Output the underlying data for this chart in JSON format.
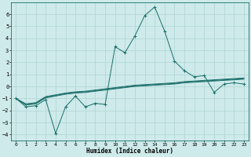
{
  "xlabel": "Humidex (Indice chaleur)",
  "bg_color": "#ceeaea",
  "grid_color": "#afd4d4",
  "line_color": "#1a6e6a",
  "xlim": [
    -0.5,
    23.5
  ],
  "ylim": [
    -4.5,
    7.0
  ],
  "xticks": [
    0,
    1,
    2,
    3,
    4,
    5,
    6,
    7,
    8,
    9,
    10,
    11,
    12,
    13,
    14,
    15,
    16,
    17,
    18,
    19,
    20,
    21,
    22,
    23
  ],
  "yticks": [
    -4,
    -3,
    -2,
    -1,
    0,
    1,
    2,
    3,
    4,
    5,
    6
  ],
  "main_y": [
    -1.0,
    -1.7,
    -1.6,
    -1.1,
    -3.9,
    -1.7,
    -0.8,
    -1.7,
    -1.4,
    -1.5,
    3.3,
    2.8,
    4.2,
    5.9,
    6.6,
    4.6,
    2.1,
    1.3,
    0.8,
    0.9,
    -0.5,
    0.2,
    0.3,
    0.2
  ],
  "flat1_y": [
    -1.0,
    -1.45,
    -1.35,
    -0.85,
    -0.7,
    -0.55,
    -0.45,
    -0.4,
    -0.3,
    -0.2,
    -0.1,
    0.0,
    0.1,
    0.15,
    0.2,
    0.25,
    0.3,
    0.4,
    0.45,
    0.5,
    0.55,
    0.6,
    0.65,
    0.7
  ],
  "flat2_y": [
    -1.0,
    -1.5,
    -1.4,
    -0.9,
    -0.75,
    -0.6,
    -0.5,
    -0.45,
    -0.35,
    -0.25,
    -0.15,
    -0.05,
    0.05,
    0.1,
    0.15,
    0.2,
    0.25,
    0.35,
    0.4,
    0.45,
    0.5,
    0.55,
    0.6,
    0.65
  ],
  "flat3_y": [
    -1.0,
    -1.55,
    -1.45,
    -0.95,
    -0.8,
    -0.65,
    -0.55,
    -0.5,
    -0.4,
    -0.3,
    -0.2,
    -0.1,
    0.0,
    0.05,
    0.1,
    0.15,
    0.2,
    0.3,
    0.35,
    0.4,
    0.45,
    0.5,
    0.55,
    0.6
  ]
}
